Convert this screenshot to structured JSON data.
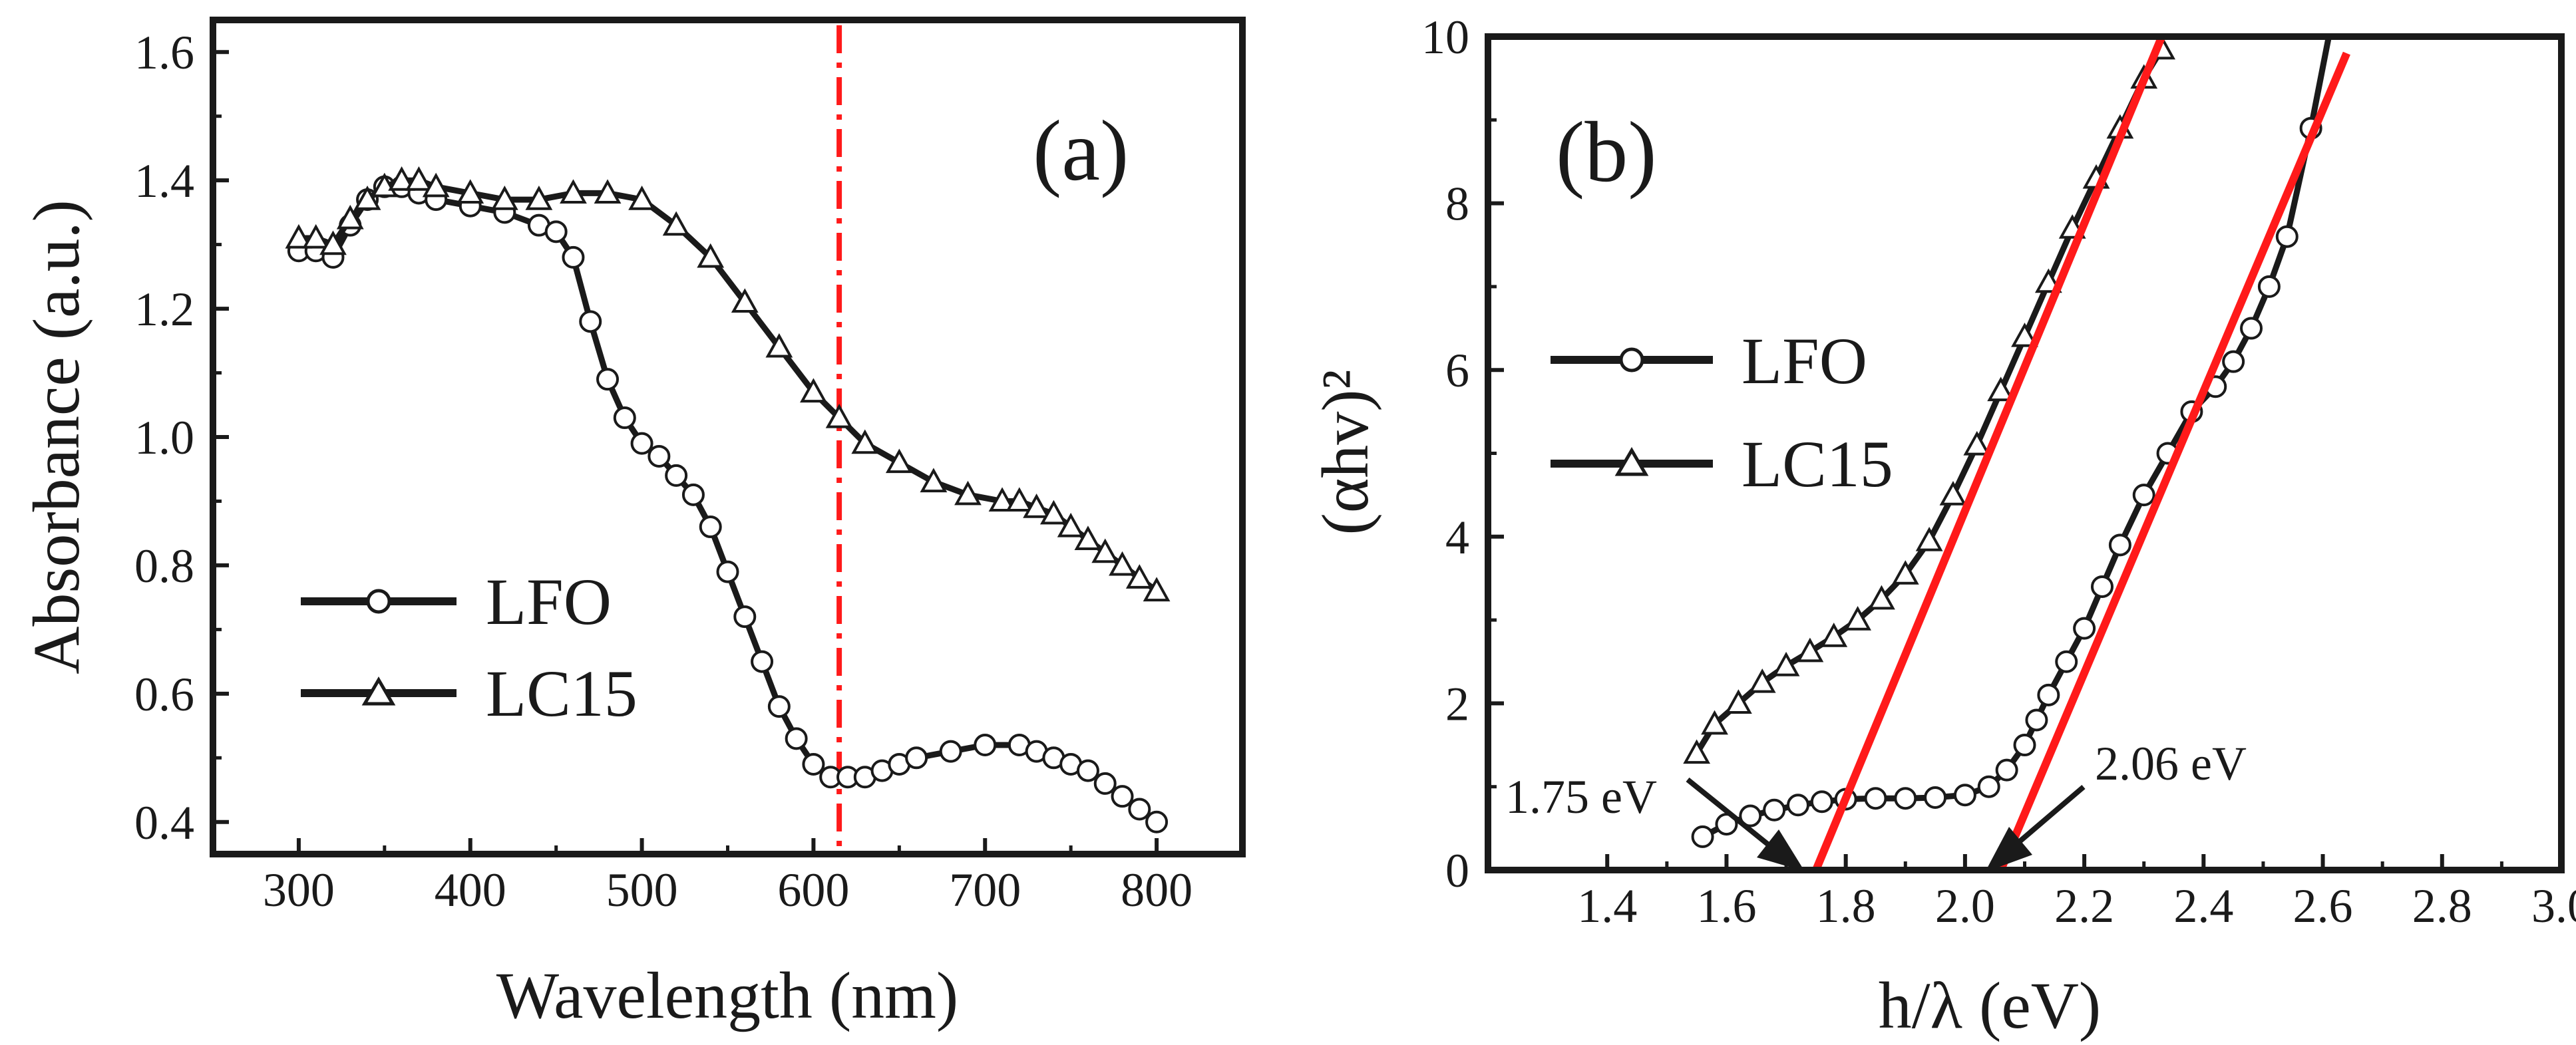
{
  "colors": {
    "axis": "#1a1a1a",
    "series_line": "#1a1a1a",
    "marker_fill": "#ffffff",
    "fit_line": "#ff1a1a",
    "dashdot": "#ff1a1a"
  },
  "chart_data": [
    {
      "id": "a",
      "type": "line",
      "panel_label": "(a)",
      "xlabel": "Wavelength (nm)",
      "ylabel": "Absorbance (a.u.)",
      "xlim": [
        250,
        850
      ],
      "ylim": [
        0.35,
        1.65
      ],
      "xticks": [
        300,
        400,
        500,
        600,
        700,
        800
      ],
      "yticks": [
        0.4,
        0.6,
        0.8,
        1.0,
        1.2,
        1.4,
        1.6
      ],
      "xtick_labels": [
        "300",
        "400",
        "500",
        "600",
        "700",
        "800"
      ],
      "ytick_labels": [
        "0.4",
        "0.6",
        "0.8",
        "1.0",
        "1.2",
        "1.4",
        "1.6"
      ],
      "legend": [
        "LFO",
        "LC15"
      ],
      "vline_x": 615,
      "series": [
        {
          "name": "LFO",
          "marker": "circle",
          "x": [
            300,
            310,
            320,
            330,
            340,
            350,
            360,
            370,
            380,
            400,
            420,
            440,
            450,
            460,
            470,
            480,
            490,
            500,
            510,
            520,
            530,
            540,
            550,
            560,
            570,
            580,
            590,
            600,
            610,
            620,
            630,
            640,
            650,
            660,
            680,
            700,
            720,
            730,
            740,
            750,
            760,
            770,
            780,
            790,
            800
          ],
          "values": [
            1.29,
            1.29,
            1.28,
            1.33,
            1.37,
            1.39,
            1.39,
            1.38,
            1.37,
            1.36,
            1.35,
            1.33,
            1.32,
            1.28,
            1.18,
            1.09,
            1.03,
            0.99,
            0.97,
            0.94,
            0.91,
            0.86,
            0.79,
            0.72,
            0.65,
            0.58,
            0.53,
            0.49,
            0.47,
            0.47,
            0.47,
            0.48,
            0.49,
            0.5,
            0.51,
            0.52,
            0.52,
            0.51,
            0.5,
            0.49,
            0.48,
            0.46,
            0.44,
            0.42,
            0.4
          ]
        },
        {
          "name": "LC15",
          "marker": "triangle",
          "x": [
            300,
            310,
            320,
            330,
            340,
            350,
            360,
            370,
            380,
            400,
            420,
            440,
            460,
            480,
            500,
            520,
            540,
            560,
            580,
            600,
            615,
            630,
            650,
            670,
            690,
            710,
            720,
            730,
            740,
            750,
            760,
            770,
            780,
            790,
            800
          ],
          "values": [
            1.31,
            1.31,
            1.3,
            1.34,
            1.37,
            1.39,
            1.4,
            1.4,
            1.39,
            1.38,
            1.37,
            1.37,
            1.38,
            1.38,
            1.37,
            1.33,
            1.28,
            1.21,
            1.14,
            1.07,
            1.03,
            0.99,
            0.96,
            0.93,
            0.91,
            0.9,
            0.9,
            0.89,
            0.88,
            0.86,
            0.84,
            0.82,
            0.8,
            0.78,
            0.76
          ]
        }
      ]
    },
    {
      "id": "b",
      "type": "line",
      "panel_label": "(b)",
      "xlabel": "h/λ (eV)",
      "ylabel": "(αhv)²",
      "xlim": [
        1.2,
        3.0
      ],
      "ylim": [
        0,
        10
      ],
      "xticks": [
        1.4,
        1.6,
        1.8,
        2.0,
        2.2,
        2.4,
        2.6,
        2.8,
        3.0
      ],
      "yticks": [
        0,
        2,
        4,
        6,
        8,
        10
      ],
      "xtick_labels": [
        "1.4",
        "1.6",
        "1.8",
        "2.0",
        "2.2",
        "2.4",
        "2.6",
        "2.8",
        "3.0"
      ],
      "ytick_labels": [
        "0",
        "2",
        "4",
        "6",
        "8",
        "10"
      ],
      "legend": [
        "LFO",
        "LC15"
      ],
      "annotations": [
        {
          "text": "1.75 eV",
          "target_x": 1.75,
          "target_y": 0
        },
        {
          "text": "2.06 eV",
          "target_x": 2.06,
          "target_y": 0
        }
      ],
      "fit_lines": [
        {
          "name": "LC15 fit",
          "x": [
            1.75,
            2.33
          ],
          "values": [
            0,
            10
          ]
        },
        {
          "name": "LFO fit",
          "x": [
            2.06,
            2.64
          ],
          "values": [
            0,
            9.8
          ]
        }
      ],
      "series": [
        {
          "name": "LFO",
          "marker": "circle",
          "x": [
            1.56,
            1.6,
            1.64,
            1.68,
            1.72,
            1.76,
            1.8,
            1.85,
            1.9,
            1.95,
            2.0,
            2.04,
            2.07,
            2.1,
            2.12,
            2.14,
            2.17,
            2.2,
            2.23,
            2.26,
            2.3,
            2.34,
            2.38,
            2.42,
            2.45,
            2.48,
            2.51,
            2.54,
            2.58,
            2.61
          ],
          "values": [
            0.4,
            0.55,
            0.65,
            0.72,
            0.78,
            0.82,
            0.85,
            0.86,
            0.86,
            0.87,
            0.9,
            1.0,
            1.2,
            1.5,
            1.8,
            2.1,
            2.5,
            2.9,
            3.4,
            3.9,
            4.5,
            5.0,
            5.5,
            5.8,
            6.1,
            6.5,
            7.0,
            7.6,
            8.9,
            10.0
          ]
        },
        {
          "name": "LC15",
          "marker": "triangle",
          "x": [
            1.55,
            1.58,
            1.62,
            1.66,
            1.7,
            1.74,
            1.78,
            1.82,
            1.86,
            1.9,
            1.94,
            1.98,
            2.02,
            2.06,
            2.1,
            2.14,
            2.18,
            2.22,
            2.26,
            2.3,
            2.33
          ],
          "values": [
            1.4,
            1.75,
            2.0,
            2.25,
            2.45,
            2.62,
            2.8,
            3.0,
            3.25,
            3.55,
            3.95,
            4.5,
            5.1,
            5.75,
            6.4,
            7.05,
            7.7,
            8.3,
            8.9,
            9.5,
            9.85
          ]
        }
      ]
    }
  ]
}
